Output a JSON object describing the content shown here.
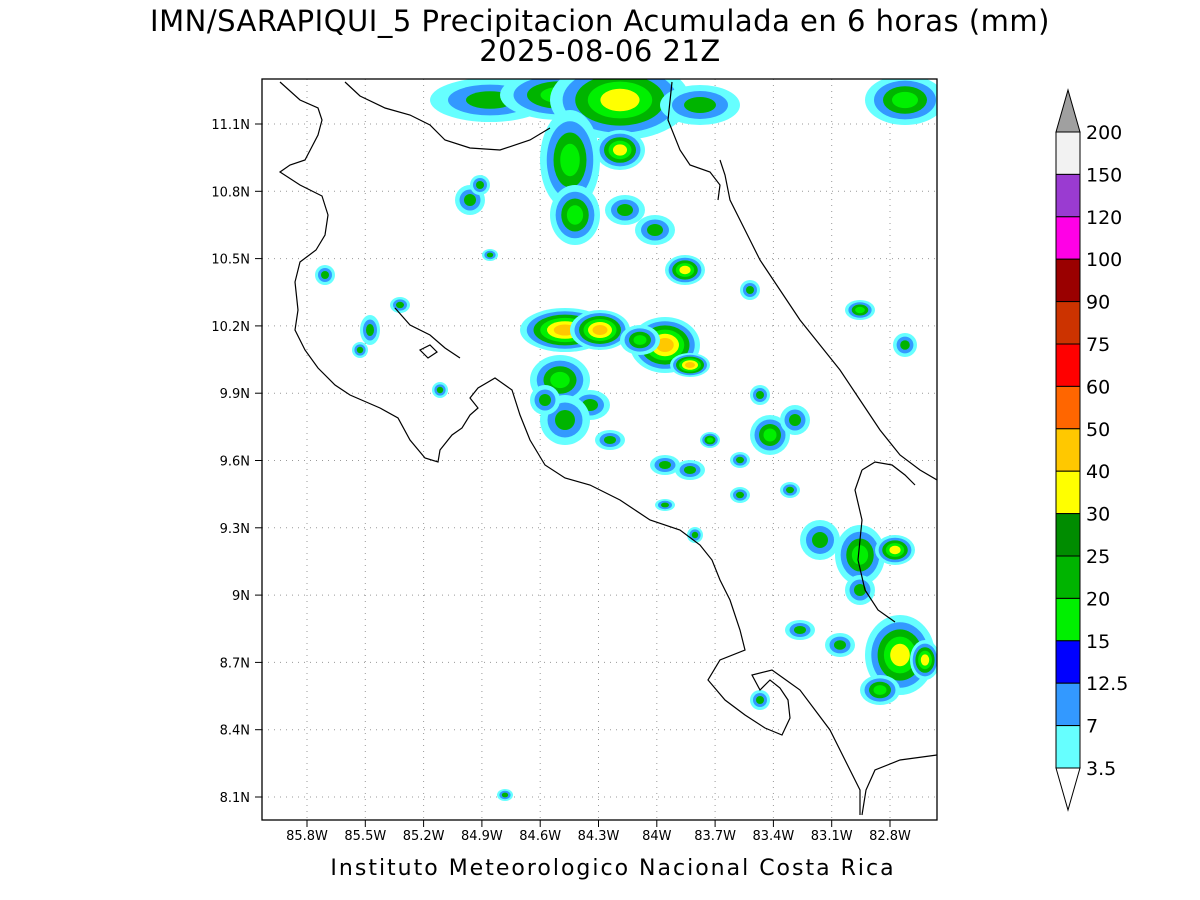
{
  "title_line1": "IMN/SARAPIQUI_5 Precipitacion Acumulada en 6 horas (mm)",
  "title_line2": "2025-08-06 21Z",
  "footer": "Instituto Meteorologico Nacional Costa Rica",
  "lon_ticks": [
    "85.8W",
    "85.5W",
    "85.2W",
    "84.9W",
    "84.6W",
    "84.3W",
    "84W",
    "83.7W",
    "83.4W",
    "83.1W",
    "82.8W"
  ],
  "lat_ticks": [
    "11.1N",
    "10.8N",
    "10.5N",
    "10.2N",
    "9.9N",
    "9.6N",
    "9.3N",
    "9N",
    "8.7N",
    "8.4N",
    "8.1N"
  ],
  "colorbar": {
    "labels": [
      "200",
      "150",
      "120",
      "100",
      "90",
      "75",
      "60",
      "50",
      "40",
      "30",
      "25",
      "20",
      "15",
      "12.5",
      "7",
      "3.5"
    ],
    "colors": [
      "#f2f2f2",
      "#9a3bd1",
      "#ff00e6",
      "#9a0000",
      "#cc3300",
      "#ff0000",
      "#ff6600",
      "#ffc800",
      "#ffff00",
      "#008c00",
      "#00b400",
      "#00f000",
      "#0000ff",
      "#3399ff",
      "#66ffff"
    ],
    "over_color": "#a0a0a0"
  }
}
